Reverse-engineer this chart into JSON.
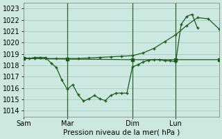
{
  "background_color": "#cce8e0",
  "grid_color": "#aad0c8",
  "line_color": "#1a5c1a",
  "ylim": [
    1013.5,
    1023.5
  ],
  "yticks": [
    1014,
    1015,
    1016,
    1017,
    1018,
    1019,
    1020,
    1021,
    1022,
    1023
  ],
  "xlabel": "Pression niveau de la mer( hPa )",
  "xtick_labels": [
    "Sam",
    "Mar",
    "Dim",
    "Lun"
  ],
  "xtick_positions": [
    0,
    48,
    120,
    168
  ],
  "xlim": [
    0,
    216
  ],
  "vline_positions": [
    48,
    120,
    168
  ],
  "line1_x": [
    0,
    6,
    12,
    18,
    24,
    30,
    36,
    42,
    48,
    54,
    60,
    66,
    72,
    78,
    84,
    90,
    96,
    102,
    108,
    114,
    120,
    126,
    132,
    138,
    144,
    150,
    156,
    162,
    168,
    174,
    180,
    186,
    192
  ],
  "line1_y": [
    1018.7,
    1018.6,
    1018.7,
    1018.7,
    1018.7,
    1018.2,
    1017.8,
    1016.7,
    1015.9,
    1016.3,
    1015.4,
    1014.85,
    1015.05,
    1015.35,
    1015.05,
    1014.9,
    1015.35,
    1015.55,
    1015.55,
    1015.55,
    1017.85,
    1018.05,
    1018.3,
    1018.45,
    1018.5,
    1018.5,
    1018.4,
    1018.4,
    1018.3,
    1021.6,
    1022.3,
    1022.5,
    1021.3
  ],
  "line2_x": [
    0,
    12,
    24,
    36,
    48,
    60,
    72,
    84,
    96,
    108,
    120,
    132,
    144,
    156,
    168,
    180,
    192,
    204,
    216
  ],
  "line2_y": [
    1018.6,
    1018.6,
    1018.6,
    1018.6,
    1018.6,
    1018.6,
    1018.65,
    1018.7,
    1018.75,
    1018.8,
    1018.85,
    1019.1,
    1019.5,
    1020.1,
    1020.7,
    1021.5,
    1022.2,
    1022.1,
    1021.2
  ],
  "line3_x": [
    0,
    48,
    120,
    168,
    216
  ],
  "line3_y": [
    1018.6,
    1018.55,
    1018.5,
    1018.5,
    1018.5
  ]
}
